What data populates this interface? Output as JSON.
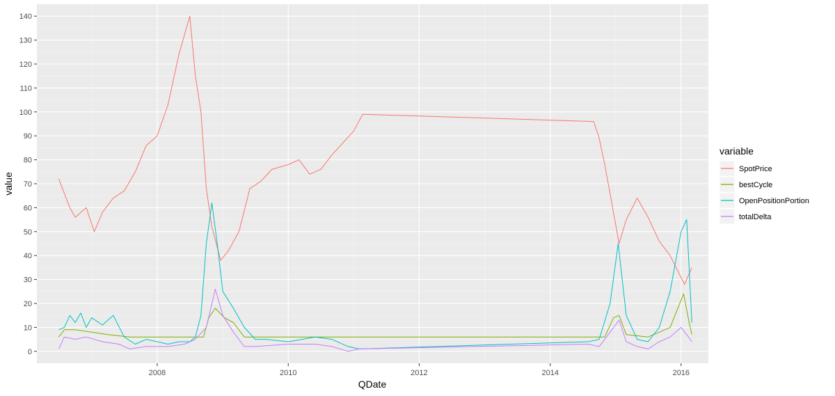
{
  "chart_data": {
    "type": "line",
    "xlabel": "QDate",
    "ylabel": "value",
    "xlim": [
      "2006-03-01",
      "2016-06-01"
    ],
    "ylim": [
      -5,
      145
    ],
    "x_ticks": [
      "2008",
      "2010",
      "2012",
      "2014",
      "2016"
    ],
    "y_ticks": [
      0,
      10,
      20,
      30,
      40,
      50,
      60,
      70,
      80,
      90,
      100,
      110,
      120,
      130,
      140
    ],
    "grid": true,
    "background": "#ebebeb",
    "legend": {
      "title": "variable",
      "position": "right"
    },
    "series": [
      {
        "name": "SpotPrice",
        "color": "#F8766D",
        "points": [
          [
            "2006-07-01",
            72
          ],
          [
            "2006-08-01",
            66
          ],
          [
            "2006-09-01",
            60
          ],
          [
            "2006-10-01",
            56
          ],
          [
            "2006-11-01",
            58
          ],
          [
            "2006-12-01",
            60
          ],
          [
            "2007-01-15",
            50
          ],
          [
            "2007-03-01",
            58
          ],
          [
            "2007-05-01",
            64
          ],
          [
            "2007-07-01",
            67
          ],
          [
            "2007-09-01",
            75
          ],
          [
            "2007-11-01",
            86
          ],
          [
            "2008-01-01",
            90
          ],
          [
            "2008-03-01",
            103
          ],
          [
            "2008-05-01",
            124
          ],
          [
            "2008-07-01",
            140
          ],
          [
            "2008-08-01",
            115
          ],
          [
            "2008-09-01",
            100
          ],
          [
            "2008-10-01",
            68
          ],
          [
            "2008-11-01",
            52
          ],
          [
            "2008-12-20",
            38
          ],
          [
            "2009-02-01",
            42
          ],
          [
            "2009-04-01",
            50
          ],
          [
            "2009-06-01",
            68
          ],
          [
            "2009-08-01",
            71
          ],
          [
            "2009-10-01",
            76
          ],
          [
            "2010-01-01",
            78
          ],
          [
            "2010-03-01",
            80
          ],
          [
            "2010-05-01",
            74
          ],
          [
            "2010-07-01",
            76
          ],
          [
            "2010-09-01",
            82
          ],
          [
            "2010-11-01",
            87
          ],
          [
            "2011-01-01",
            92
          ],
          [
            "2011-02-20",
            99
          ],
          [
            "2014-09-01",
            96
          ],
          [
            "2014-10-01",
            89
          ],
          [
            "2014-11-01",
            78
          ],
          [
            "2014-12-15",
            60
          ],
          [
            "2015-01-20",
            45
          ],
          [
            "2015-03-01",
            55
          ],
          [
            "2015-05-01",
            64
          ],
          [
            "2015-07-01",
            56
          ],
          [
            "2015-09-01",
            46
          ],
          [
            "2015-11-01",
            40
          ],
          [
            "2016-01-20",
            28
          ],
          [
            "2016-03-01",
            35
          ]
        ]
      },
      {
        "name": "bestCycle",
        "color": "#7CAE00",
        "points": [
          [
            "2006-07-01",
            6
          ],
          [
            "2006-08-01",
            9
          ],
          [
            "2006-10-01",
            9
          ],
          [
            "2007-01-01",
            8
          ],
          [
            "2007-04-01",
            7
          ],
          [
            "2007-08-01",
            6
          ],
          [
            "2008-09-15",
            6
          ],
          [
            "2008-10-15",
            14
          ],
          [
            "2008-11-20",
            18
          ],
          [
            "2009-01-10",
            14
          ],
          [
            "2009-03-01",
            12
          ],
          [
            "2009-05-01",
            6
          ],
          [
            "2014-11-01",
            6
          ],
          [
            "2014-12-20",
            14
          ],
          [
            "2015-01-20",
            15
          ],
          [
            "2015-03-01",
            7
          ],
          [
            "2015-07-01",
            6
          ],
          [
            "2015-11-01",
            10
          ],
          [
            "2016-01-15",
            24
          ],
          [
            "2016-02-15",
            12
          ],
          [
            "2016-03-01",
            7
          ]
        ]
      },
      {
        "name": "OpenPositionPortion",
        "color": "#00BFC4",
        "points": [
          [
            "2006-07-01",
            9
          ],
          [
            "2006-08-01",
            10
          ],
          [
            "2006-09-01",
            15
          ],
          [
            "2006-10-01",
            12
          ],
          [
            "2006-11-01",
            16
          ],
          [
            "2006-12-01",
            10
          ],
          [
            "2007-01-01",
            14
          ],
          [
            "2007-03-01",
            11
          ],
          [
            "2007-05-01",
            15
          ],
          [
            "2007-07-01",
            6
          ],
          [
            "2007-09-01",
            3
          ],
          [
            "2007-11-01",
            5
          ],
          [
            "2008-01-01",
            4
          ],
          [
            "2008-03-01",
            3
          ],
          [
            "2008-05-01",
            4
          ],
          [
            "2008-07-01",
            4
          ],
          [
            "2008-08-01",
            6
          ],
          [
            "2008-09-01",
            15
          ],
          [
            "2008-10-01",
            45
          ],
          [
            "2008-11-01",
            62
          ],
          [
            "2008-12-01",
            45
          ],
          [
            "2009-01-01",
            25
          ],
          [
            "2009-03-01",
            18
          ],
          [
            "2009-05-01",
            10
          ],
          [
            "2009-07-01",
            5
          ],
          [
            "2009-09-01",
            5
          ],
          [
            "2010-01-01",
            4
          ],
          [
            "2010-06-01",
            6
          ],
          [
            "2010-09-01",
            5
          ],
          [
            "2010-12-01",
            2
          ],
          [
            "2011-02-01",
            1
          ],
          [
            "2014-08-01",
            4
          ],
          [
            "2014-10-01",
            5
          ],
          [
            "2014-12-01",
            20
          ],
          [
            "2015-01-15",
            45
          ],
          [
            "2015-03-01",
            15
          ],
          [
            "2015-05-01",
            5
          ],
          [
            "2015-07-01",
            4
          ],
          [
            "2015-09-01",
            10
          ],
          [
            "2015-11-01",
            25
          ],
          [
            "2016-01-01",
            50
          ],
          [
            "2016-02-01",
            55
          ],
          [
            "2016-03-01",
            12
          ]
        ]
      },
      {
        "name": "totalDelta",
        "color": "#C77CFF",
        "points": [
          [
            "2006-07-01",
            1
          ],
          [
            "2006-08-01",
            6
          ],
          [
            "2006-10-01",
            5
          ],
          [
            "2006-12-01",
            6
          ],
          [
            "2007-03-01",
            4
          ],
          [
            "2007-06-01",
            3
          ],
          [
            "2007-08-01",
            1
          ],
          [
            "2007-11-01",
            2
          ],
          [
            "2008-03-01",
            2
          ],
          [
            "2008-06-01",
            3
          ],
          [
            "2008-08-01",
            5
          ],
          [
            "2008-10-01",
            10
          ],
          [
            "2008-11-20",
            26
          ],
          [
            "2009-01-01",
            15
          ],
          [
            "2009-03-01",
            8
          ],
          [
            "2009-05-01",
            2
          ],
          [
            "2009-07-01",
            2
          ],
          [
            "2010-01-01",
            3
          ],
          [
            "2010-06-01",
            3
          ],
          [
            "2010-09-01",
            2
          ],
          [
            "2010-12-01",
            0
          ],
          [
            "2011-02-01",
            1
          ],
          [
            "2014-08-01",
            3
          ],
          [
            "2014-10-01",
            2
          ],
          [
            "2014-12-01",
            8
          ],
          [
            "2015-01-20",
            13
          ],
          [
            "2015-03-01",
            4
          ],
          [
            "2015-05-01",
            2
          ],
          [
            "2015-07-01",
            1
          ],
          [
            "2015-09-01",
            4
          ],
          [
            "2015-11-01",
            6
          ],
          [
            "2016-01-01",
            10
          ],
          [
            "2016-02-01",
            7
          ],
          [
            "2016-03-01",
            4
          ]
        ]
      }
    ]
  }
}
